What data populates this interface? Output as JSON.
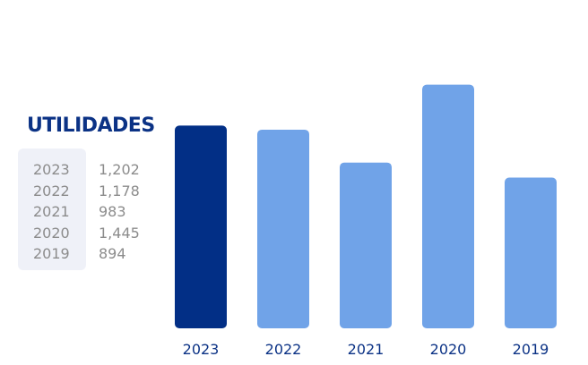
{
  "chart_data": {
    "type": "bar",
    "title": "UTILIDADES",
    "categories": [
      "2023",
      "2022",
      "2021",
      "2020",
      "2019"
    ],
    "values": [
      1202,
      1178,
      983,
      1445,
      894
    ],
    "value_labels": [
      "1,202",
      "1,178",
      "983",
      "1,445",
      "894"
    ],
    "highlight_index": 0,
    "xlabel": "",
    "ylabel": "",
    "ylim": [
      0,
      1530
    ],
    "grid": false,
    "legend_placement": "left",
    "colors": {
      "highlight": "#022f86",
      "bar": "#70a3e8",
      "title": "#0b3285",
      "legend_text": "#8c8c8c",
      "legend_panel": "#eff1f8"
    }
  }
}
